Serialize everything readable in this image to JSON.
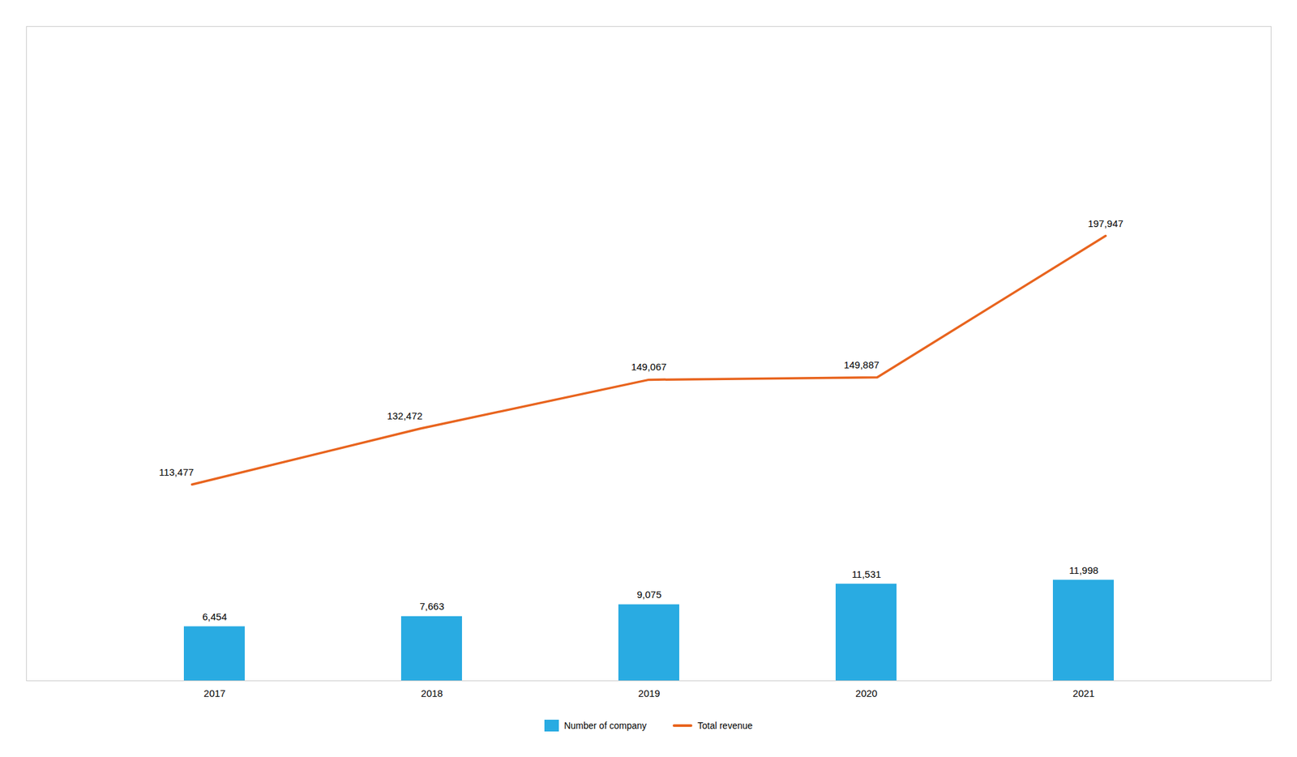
{
  "chart_data": {
    "type": "bar",
    "categories": [
      "2017",
      "2018",
      "2019",
      "2020",
      "2021"
    ],
    "series": [
      {
        "name": "Number of company",
        "type": "bar",
        "color": "#29ABE2",
        "values": [
          6454,
          7663,
          9075,
          11531,
          11998
        ],
        "value_labels": [
          "6,454",
          "7,663",
          "9,075",
          "11,531",
          "11,998"
        ]
      },
      {
        "name": "Total revenue",
        "type": "line",
        "axis": "y2",
        "color": "#E8641E",
        "values": [
          113477,
          132472,
          149067,
          149887,
          197947
        ],
        "value_labels": [
          "113,477",
          "132,472",
          "149,067",
          "149,887",
          "197,947"
        ]
      }
    ],
    "ylim": [
      0,
      77987
    ],
    "y2lim": [
      46790.15789473684,
      269079.63157894736
    ],
    "data_labels": true,
    "tick_labels": "x",
    "grid": false,
    "legend": "bottom"
  }
}
